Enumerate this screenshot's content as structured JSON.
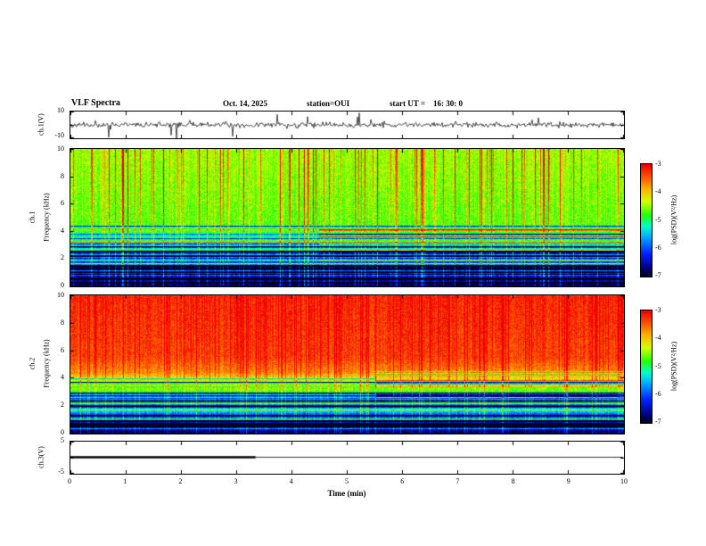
{
  "header": {
    "title": "VLF Spectra",
    "date": "Oct. 14, 2025",
    "station": "station=OUI",
    "start_ut": "start UT =    16: 30: 0"
  },
  "axes": {
    "x_label": "Time (min)",
    "x_ticks": [
      "0",
      "1",
      "2",
      "3",
      "4",
      "5",
      "6",
      "7",
      "8",
      "9",
      "10"
    ],
    "freq_ticks": [
      "0",
      "2",
      "4",
      "6",
      "8",
      "10"
    ],
    "ch1_wave": {
      "label": "ch.1(V)",
      "tick_top": "10",
      "tick_bottom": "-10"
    },
    "spec1": {
      "ch_label": "ch.1",
      "axis_label": "Frequency (kHz)"
    },
    "spec2": {
      "ch_label": "ch.2",
      "axis_label": "Frequency (kHz)"
    },
    "ch3": {
      "label": "ch.3(V)",
      "tick_top": "5",
      "tick_bottom": "-5"
    }
  },
  "colorbar": {
    "label": "log(PSD)(V²/Hz)",
    "ticks": [
      "-3",
      "-4",
      "-5",
      "-6",
      "-7"
    ],
    "stops": [
      {
        "t": 0.0,
        "color": "#000018"
      },
      {
        "t": 0.07,
        "color": "#000080"
      },
      {
        "t": 0.2,
        "color": "#0020ff"
      },
      {
        "t": 0.36,
        "color": "#00b4ff"
      },
      {
        "t": 0.45,
        "color": "#00ffc8"
      },
      {
        "t": 0.55,
        "color": "#28ff00"
      },
      {
        "t": 0.67,
        "color": "#d4ff00"
      },
      {
        "t": 0.78,
        "color": "#ffb400"
      },
      {
        "t": 0.88,
        "color": "#ff5a00"
      },
      {
        "t": 1.0,
        "color": "#f00000"
      }
    ]
  },
  "chart_data": [
    {
      "panel": "ch1_waveform",
      "type": "line",
      "title": "ch.1 time series",
      "ylabel": "ch.1(V)",
      "xlabel": "Time (min)",
      "ylim": [
        -10,
        10
      ],
      "xlim": [
        0,
        10
      ],
      "description": "broadband noise near 0 V with impulsive sferic spikes reaching +/-10 V",
      "noise_amplitude": 0.9,
      "spike_rate": 0.028,
      "spike_max": 8.5,
      "seed": 11
    },
    {
      "panel": "ch1_spectrogram",
      "type": "heatmap",
      "title": "ch.1 VLF spectrogram",
      "ylabel": "Frequency (kHz)",
      "xlabel": "Time (min)",
      "ylim": [
        0,
        10
      ],
      "xlim": [
        0,
        10
      ],
      "value_range": [
        -7,
        -3
      ],
      "legend": "log(PSD)(V²/Hz)",
      "description": "green-yellow background 4-10 kHz with dense vertical sferic streaks (yellow/red), blue-cyan banded region 0.5-4 kHz with dark horizontal lines, dark floor below 0.5 kHz",
      "profile": [
        {
          "f": 0.0,
          "v": -6.9
        },
        {
          "f": 0.03,
          "v": -6.6
        },
        {
          "f": 0.08,
          "v": -6.1
        },
        {
          "f": 0.18,
          "v": -5.6
        },
        {
          "f": 0.3,
          "v": -5.15
        },
        {
          "f": 0.38,
          "v": -4.85
        },
        {
          "f": 0.45,
          "v": -4.65
        },
        {
          "f": 0.7,
          "v": -4.55
        },
        {
          "f": 1.0,
          "v": -4.45
        }
      ],
      "banding_region": [
        0.04,
        0.4
      ],
      "band_amp": 0.3,
      "band_freq": 80,
      "streak_rate": 0.16,
      "streak_boost": 1.9,
      "col_jitter": 0.3,
      "noise": 0.55,
      "dark_lines": 24,
      "bright_lines": 8,
      "line_region": [
        0.02,
        0.45
      ],
      "right_lines": {
        "count": 12,
        "region": [
          0.18,
          0.42
        ],
        "start_frac": 0.45
      },
      "seed": 7
    },
    {
      "panel": "ch2_spectrogram",
      "type": "heatmap",
      "title": "ch.2 VLF spectrogram",
      "ylabel": "Frequency (kHz)",
      "xlabel": "Time (min)",
      "ylim": [
        0,
        10
      ],
      "xlim": [
        0,
        10
      ],
      "value_range": [
        -7,
        -3
      ],
      "legend": "log(PSD)(V²/Hz)",
      "description": "saturated red/orange 4-10 kHz, green transition near 3-4 kHz, blue-cyan banded region below with horizontal line structure, dark floor near 0 kHz",
      "profile": [
        {
          "f": 0.0,
          "v": -6.9
        },
        {
          "f": 0.04,
          "v": -6.4
        },
        {
          "f": 0.1,
          "v": -5.9
        },
        {
          "f": 0.2,
          "v": -5.5
        },
        {
          "f": 0.3,
          "v": -5.0
        },
        {
          "f": 0.36,
          "v": -4.5
        },
        {
          "f": 0.44,
          "v": -3.7
        },
        {
          "f": 0.55,
          "v": -3.35
        },
        {
          "f": 1.0,
          "v": -3.2
        }
      ],
      "banding_region": [
        0.04,
        0.34
      ],
      "band_amp": 0.3,
      "band_freq": 85,
      "streak_rate": 0.15,
      "streak_boost": 1.4,
      "col_jitter": 0.28,
      "noise": 0.5,
      "dark_lines": 18,
      "bright_lines": 7,
      "line_region": [
        0.03,
        0.4
      ],
      "right_lines": {
        "count": 14,
        "region": [
          0.26,
          0.46
        ],
        "start_frac": 0.55
      },
      "seed": 19
    },
    {
      "panel": "ch3",
      "type": "line",
      "title": "ch.3 time series",
      "ylabel": "ch.3(V)",
      "xlabel": "Time (min)",
      "ylim": [
        -5,
        5
      ],
      "xlim": [
        0,
        10
      ],
      "description": "flat trace near 0 V, drawn thick from 0 to ~3.35 min then thin to 10 min",
      "value": 0.3,
      "thick_until_min": 3.35,
      "seed": 3
    }
  ]
}
